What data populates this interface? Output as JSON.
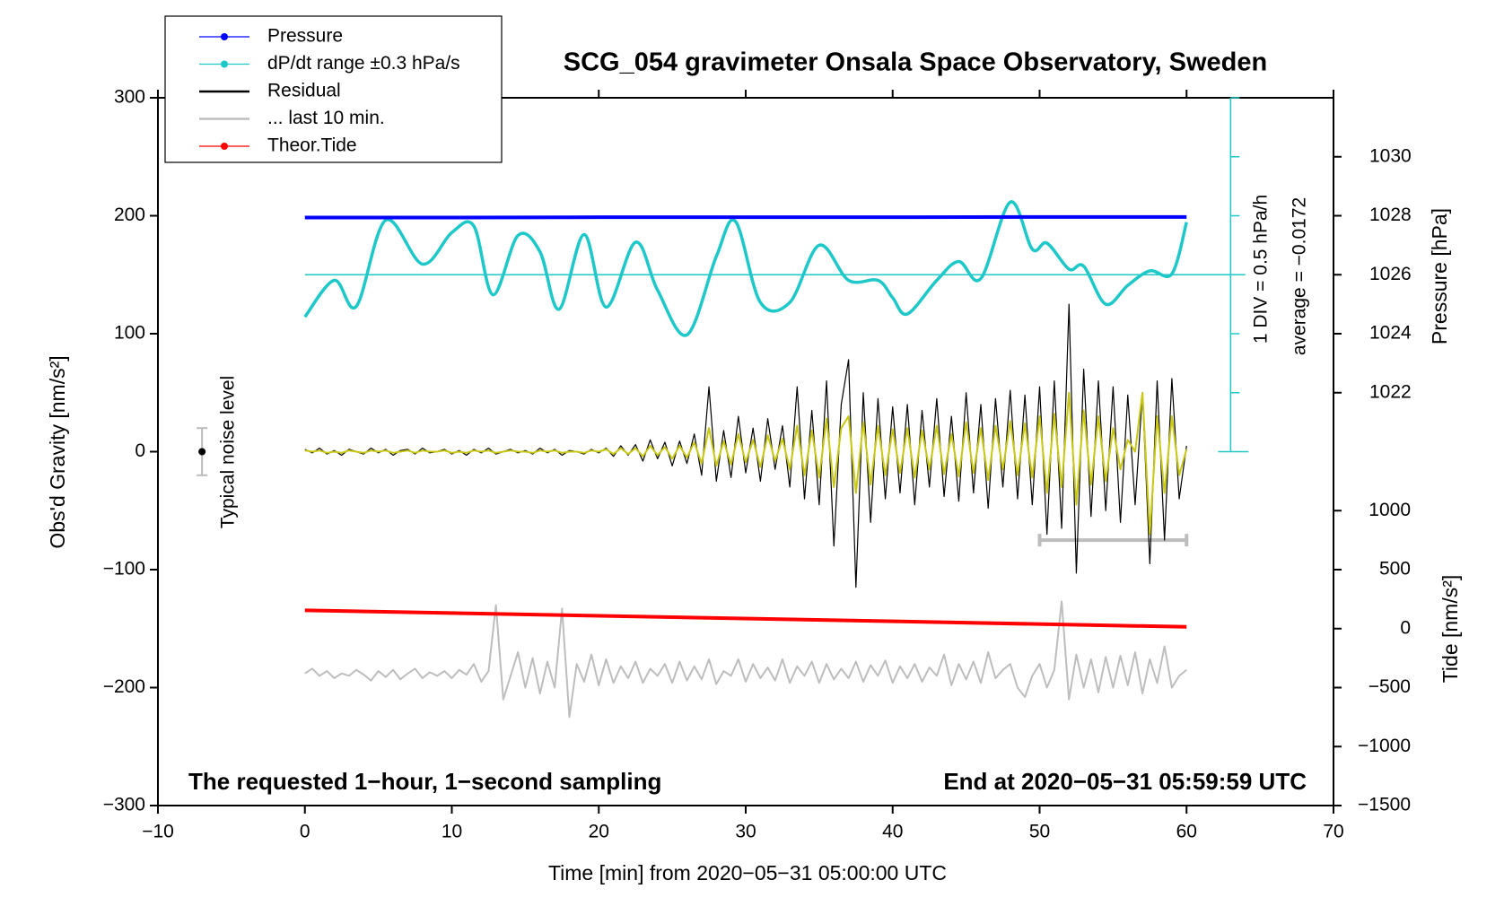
{
  "chart_data": {
    "type": "line",
    "title": "SCG_054 gravimeter Onsala Space Observatory, Sweden",
    "xlabel": "Time [min] from 2020−05−31 05:00:00 UTC",
    "ylabel": "Obs'd Gravity [nm/s²]",
    "y2label": "Pressure [hPa]",
    "y3label": "Tide [nm/s²]",
    "footer_left": "The requested 1−hour, 1−second sampling",
    "footer_right": "End at 2020−05−31 05:59:59 UTC",
    "noise_label": "Typical noise level",
    "scale_label": "1 DIV = 0.5 hPa/h",
    "average_label": "average = −0.0172",
    "xlim": [
      -10,
      70
    ],
    "xticks": [
      {
        "value": -10,
        "label": "−10"
      },
      0,
      10,
      20,
      30,
      40,
      50,
      60,
      70
    ],
    "ylim": [
      -300,
      300
    ],
    "yticks": [
      {
        "value": -300,
        "label": "−300"
      },
      {
        "value": -200,
        "label": "−200"
      },
      {
        "value": -100,
        "label": "−100"
      },
      0,
      100,
      200,
      300
    ],
    "y2lim": [
      1008,
      1032
    ],
    "y2ticks": [
      1022,
      1024,
      1026,
      1028,
      1030
    ],
    "y3lim": [
      -1500,
      4500
    ],
    "y3ticks": [
      {
        "value": -1500,
        "label": "−1500"
      },
      {
        "value": -1000,
        "label": "−1000"
      },
      {
        "value": -500,
        "label": "−500"
      },
      0,
      500,
      1000
    ],
    "x": [
      0,
      0.5,
      1,
      1.5,
      2,
      2.5,
      3,
      3.5,
      4,
      4.5,
      5,
      5.5,
      6,
      6.5,
      7,
      7.5,
      8,
      8.5,
      9,
      9.5,
      10,
      10.5,
      11,
      11.5,
      12,
      12.5,
      13,
      13.5,
      14,
      14.5,
      15,
      15.5,
      16,
      16.5,
      17,
      17.5,
      18,
      18.5,
      19,
      19.5,
      20,
      20.5,
      21,
      21.5,
      22,
      22.5,
      23,
      23.5,
      24,
      24.5,
      25,
      25.5,
      26,
      26.5,
      27,
      27.5,
      28,
      28.5,
      29,
      29.5,
      30,
      30.5,
      31,
      31.5,
      32,
      32.5,
      33,
      33.5,
      34,
      34.5,
      35,
      35.5,
      36,
      36.5,
      37,
      37.5,
      38,
      38.5,
      39,
      39.5,
      40,
      40.5,
      41,
      41.5,
      42,
      42.5,
      43,
      43.5,
      44,
      44.5,
      45,
      45.5,
      46,
      46.5,
      47,
      47.5,
      48,
      48.5,
      49,
      49.5,
      50,
      50.5,
      51,
      51.5,
      52,
      52.5,
      53,
      53.5,
      54,
      54.5,
      55,
      55.5,
      56,
      56.5,
      57,
      57.5,
      58,
      58.5,
      59,
      59.5,
      60
    ],
    "series": [
      {
        "name": "Pressure",
        "color": "#0000ff",
        "axis": "y2",
        "marker": true,
        "width": 4,
        "x": [
          0,
          10,
          20,
          30,
          40,
          50,
          60
        ],
        "values": [
          1027.94,
          1027.94,
          1027.95,
          1027.95,
          1027.95,
          1027.96,
          1027.96
        ]
      },
      {
        "name": "dP/dt range ±0.3 hPa/s",
        "color": "#1ec8c8",
        "axis": "y2",
        "marker": true,
        "width": 3.5,
        "smooth": true,
        "x": [
          0,
          2,
          3.5,
          5.5,
          8,
          10,
          11.5,
          12.8,
          14.5,
          16,
          17.3,
          19,
          20.5,
          22.5,
          24,
          26,
          28,
          29.3,
          31,
          33,
          35,
          37,
          39,
          40,
          41,
          43,
          44.5,
          46,
          48,
          49.5,
          50.5,
          52,
          53,
          54.5,
          56,
          57.5,
          59,
          60
        ],
        "values": [
          1024.57,
          1025.81,
          1024.93,
          1027.85,
          1026.36,
          1027.43,
          1027.65,
          1025.32,
          1027.33,
          1026.78,
          1024.83,
          1027.36,
          1024.9,
          1027.1,
          1025.48,
          1023.96,
          1026.62,
          1027.81,
          1025.06,
          1025.06,
          1027.0,
          1025.81,
          1025.81,
          1025.22,
          1024.67,
          1025.81,
          1026.45,
          1025.87,
          1028.46,
          1026.87,
          1027.07,
          1026.19,
          1026.29,
          1025.0,
          1025.64,
          1026.13,
          1026.03,
          1027.78
        ]
      },
      {
        "name": "Residual",
        "color": "#000000",
        "axis": "y",
        "width": 1.2,
        "values": [
          2,
          -1,
          3,
          -2,
          1,
          -3,
          2,
          0,
          -2,
          3,
          -1,
          2,
          -3,
          1,
          2,
          -2,
          3,
          -1,
          0,
          2,
          -2,
          1,
          -3,
          2,
          -1,
          3,
          -2,
          0,
          2,
          -1,
          1,
          -2,
          3,
          -1,
          2,
          -3,
          1,
          0,
          -2,
          2,
          -1,
          3,
          -4,
          5,
          -3,
          6,
          -8,
          10,
          -6,
          8,
          -12,
          9,
          -10,
          15,
          -20,
          55,
          -25,
          18,
          -22,
          30,
          -18,
          20,
          -25,
          28,
          -15,
          22,
          -30,
          55,
          -40,
          35,
          -45,
          60,
          -80,
          40,
          78,
          -115,
          50,
          -60,
          45,
          -40,
          38,
          -35,
          40,
          -45,
          35,
          -30,
          45,
          -38,
          30,
          -42,
          50,
          -35,
          40,
          -48,
          45,
          -30,
          52,
          -40,
          48,
          -45,
          55,
          -70,
          60,
          -65,
          125,
          -103,
          70,
          -55,
          60,
          -50,
          55,
          -60,
          48,
          -45,
          50,
          -95,
          60,
          -75,
          62,
          -40,
          5
        ]
      },
      {
        "color": "#c8c814",
        "axis": "y",
        "width": 2,
        "values": [
          1,
          0,
          1,
          -1,
          0,
          -1,
          1,
          0,
          -1,
          1,
          0,
          1,
          -1,
          0,
          1,
          -1,
          1,
          0,
          0,
          1,
          -1,
          0,
          -1,
          1,
          0,
          1,
          -1,
          0,
          1,
          0,
          0,
          -1,
          1,
          0,
          1,
          -1,
          0,
          0,
          -1,
          1,
          0,
          2,
          -2,
          3,
          -2,
          3,
          -4,
          5,
          -3,
          4,
          -6,
          5,
          -5,
          8,
          -10,
          20,
          -12,
          9,
          -11,
          15,
          -9,
          10,
          -13,
          14,
          -8,
          11,
          -15,
          22,
          -20,
          18,
          -22,
          28,
          -30,
          20,
          30,
          -35,
          25,
          -28,
          22,
          -20,
          19,
          -18,
          20,
          -22,
          18,
          -15,
          22,
          -19,
          15,
          -21,
          25,
          -18,
          20,
          -24,
          22,
          -15,
          26,
          -20,
          24,
          -22,
          30,
          -35,
          32,
          -30,
          50,
          -45,
          35,
          -28,
          30,
          -25,
          20,
          -15,
          10,
          0,
          50,
          -70,
          30,
          -35,
          30,
          -20,
          2
        ]
      },
      {
        "name": "... last 10 min.",
        "color": "#bdbdbd",
        "axis": "y",
        "width": 2,
        "values": [
          -188,
          -184,
          -190,
          -186,
          -192,
          -188,
          -190,
          -185,
          -189,
          -194,
          -186,
          -191,
          -185,
          -193,
          -188,
          -184,
          -192,
          -187,
          -190,
          -186,
          -192,
          -185,
          -189,
          -180,
          -195,
          -186,
          -130,
          -210,
          -190,
          -170,
          -200,
          -175,
          -205,
          -178,
          -200,
          -133,
          -225,
          -180,
          -195,
          -172,
          -198,
          -176,
          -196,
          -182,
          -192,
          -178,
          -196,
          -184,
          -190,
          -180,
          -196,
          -178,
          -194,
          -182,
          -193,
          -176,
          -197,
          -186,
          -190,
          -176,
          -195,
          -180,
          -192,
          -183,
          -194,
          -176,
          -196,
          -182,
          -190,
          -178,
          -196,
          -180,
          -193,
          -184,
          -192,
          -178,
          -195,
          -181,
          -190,
          -177,
          -196,
          -182,
          -192,
          -180,
          -195,
          -183,
          -190,
          -172,
          -198,
          -180,
          -193,
          -178,
          -196,
          -170,
          -192,
          -185,
          -180,
          -200,
          -208,
          -190,
          -180,
          -200,
          -185,
          -127,
          -210,
          -172,
          -200,
          -176,
          -204,
          -174,
          -200,
          -173,
          -198,
          -170,
          -205,
          -176,
          -196,
          -165,
          -200,
          -190,
          -185
        ]
      },
      {
        "name": "Theor.Tide",
        "color": "#ff0000",
        "axis": "y3",
        "marker": true,
        "width": 4,
        "x": [
          0,
          60
        ],
        "values": [
          155,
          15
        ]
      }
    ],
    "average_line": {
      "value": 1026,
      "axis": "y2",
      "x": [
        0,
        64
      ],
      "color": "#1ec8c8"
    },
    "last10_bar": {
      "x": [
        50,
        60
      ],
      "value": -75,
      "color": "#bdbdbd"
    },
    "noise_bar": {
      "x": -7,
      "value": 0,
      "error": 20
    }
  }
}
